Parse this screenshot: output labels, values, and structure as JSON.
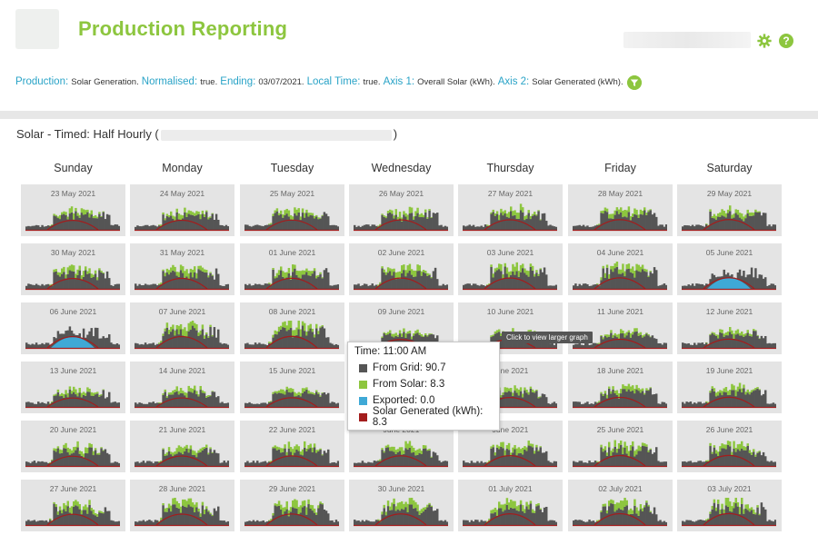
{
  "header": {
    "title": "Production Reporting"
  },
  "filters": [
    {
      "key": "Production:",
      "value": "Solar Generation."
    },
    {
      "key": "Normalised:",
      "value": "true."
    },
    {
      "key": "Ending:",
      "value": "03/07/2021."
    },
    {
      "key": "Local Time:",
      "value": "true."
    },
    {
      "key": "Axis 1:",
      "value": "Overall Solar (kWh)."
    },
    {
      "key": "Axis 2:",
      "value": "Solar Generated (kWh)."
    }
  ],
  "section": {
    "title_prefix": "Solar - Timed: Half Hourly (",
    "title_suffix": ")"
  },
  "days": [
    "Sunday",
    "Monday",
    "Tuesday",
    "Wednesday",
    "Thursday",
    "Friday",
    "Saturday"
  ],
  "dates": [
    [
      "23 May 2021",
      "24 May 2021",
      "25 May 2021",
      "26 May 2021",
      "27 May 2021",
      "28 May 2021",
      "29 May 2021"
    ],
    [
      "30 May 2021",
      "31 May 2021",
      "01 June 2021",
      "02 June 2021",
      "03 June 2021",
      "04 June 2021",
      "05 June 2021"
    ],
    [
      "06 June 2021",
      "07 June 2021",
      "08 June 2021",
      "09 June 2021",
      "10 June 2021",
      "11 June 2021",
      "12 June 2021"
    ],
    [
      "13 June 2021",
      "14 June 2021",
      "15 June 2021",
      "",
      "June 2021",
      "18 June 2021",
      "19 June 2021"
    ],
    [
      "20 June 2021",
      "21 June 2021",
      "22 June 2021",
      "June 2021",
      "June 2021",
      "25 June 2021",
      "26 June 2021"
    ],
    [
      "27 June 2021",
      "28 June 2021",
      "29 June 2021",
      "30 June 2021",
      "01 July 2021",
      "02 July 2021",
      "03 July 2021"
    ]
  ],
  "tooltip": {
    "time": "Time: 11:00 AM",
    "rows": [
      {
        "label": "From Grid: 90.7",
        "color": "#555555"
      },
      {
        "label": "From Solar: 8.3",
        "color": "#8dc63f"
      },
      {
        "label": "Exported: 0.0",
        "color": "#3fa9d6"
      },
      {
        "label": "Solar Generated (kWh): 8.3",
        "color": "#a31d1d"
      }
    ]
  },
  "hover_hint": "Click to view larger graph",
  "colors": {
    "grid": "#555555",
    "solar": "#8dc63f",
    "exported": "#3fa9d6",
    "generated": "#a31d1d",
    "accent": "#8dc63f",
    "link": "#29a3c7"
  }
}
